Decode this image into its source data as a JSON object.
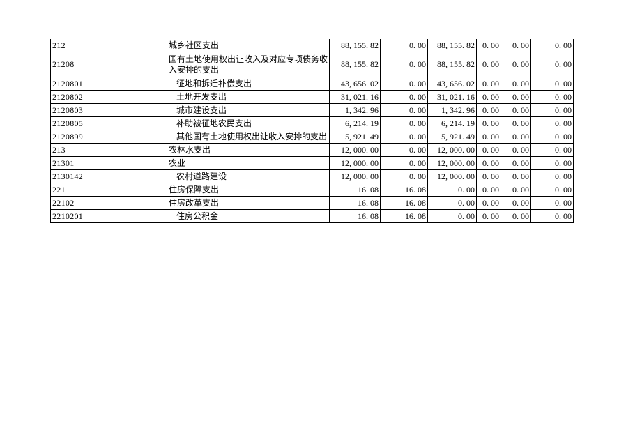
{
  "document": {
    "language": "zh-CN",
    "description_note": "continuation page of a budget expenditure table"
  },
  "colors": {
    "page_background": "#ffffff",
    "text": "#000000",
    "border": "#000000"
  },
  "table": {
    "rows": [
      {
        "code": "212",
        "desc": "城乡社区支出",
        "indent": false,
        "tall": false,
        "values": [
          "88, 155. 82",
          "0. 00",
          "88, 155. 82",
          "0. 00",
          "0. 00",
          "0. 00"
        ]
      },
      {
        "code": "21208",
        "desc": "国有土地使用权出让收入及对应专项债务收入安排的支出",
        "indent": false,
        "tall": true,
        "values": [
          "88, 155. 82",
          "0. 00",
          "88, 155. 82",
          "0. 00",
          "0. 00",
          "0. 00"
        ]
      },
      {
        "code": "2120801",
        "desc": "征地和拆迁补偿支出",
        "indent": true,
        "tall": false,
        "values": [
          "43, 656. 02",
          "0. 00",
          "43, 656. 02",
          "0. 00",
          "0. 00",
          "0. 00"
        ]
      },
      {
        "code": "2120802",
        "desc": "土地开发支出",
        "indent": true,
        "tall": false,
        "values": [
          "31, 021. 16",
          "0. 00",
          "31, 021. 16",
          "0. 00",
          "0. 00",
          "0. 00"
        ]
      },
      {
        "code": "2120803",
        "desc": "城市建设支出",
        "indent": true,
        "tall": false,
        "values": [
          "1, 342. 96",
          "0. 00",
          "1, 342. 96",
          "0. 00",
          "0. 00",
          "0. 00"
        ]
      },
      {
        "code": "2120805",
        "desc": "补助被征地农民支出",
        "indent": true,
        "tall": false,
        "values": [
          "6, 214. 19",
          "0. 00",
          "6, 214. 19",
          "0. 00",
          "0. 00",
          "0. 00"
        ]
      },
      {
        "code": "2120899",
        "desc": "其他国有土地使用权出让收入安排的支出",
        "indent": true,
        "tall": false,
        "values": [
          "5, 921. 49",
          "0. 00",
          "5, 921. 49",
          "0. 00",
          "0. 00",
          "0. 00"
        ]
      },
      {
        "code": "213",
        "desc": "农林水支出",
        "indent": false,
        "tall": false,
        "values": [
          "12, 000. 00",
          "0. 00",
          "12, 000. 00",
          "0. 00",
          "0. 00",
          "0. 00"
        ]
      },
      {
        "code": "21301",
        "desc": "农业",
        "indent": false,
        "tall": false,
        "values": [
          "12, 000. 00",
          "0. 00",
          "12, 000. 00",
          "0. 00",
          "0. 00",
          "0. 00"
        ]
      },
      {
        "code": "2130142",
        "desc": "农村道路建设",
        "indent": true,
        "tall": false,
        "values": [
          "12, 000. 00",
          "0. 00",
          "12, 000. 00",
          "0. 00",
          "0. 00",
          "0. 00"
        ]
      },
      {
        "code": "221",
        "desc": "住房保障支出",
        "indent": false,
        "tall": false,
        "values": [
          "16. 08",
          "16. 08",
          "0. 00",
          "0. 00",
          "0. 00",
          "0. 00"
        ]
      },
      {
        "code": "22102",
        "desc": "住房改革支出",
        "indent": false,
        "tall": false,
        "values": [
          "16. 08",
          "16. 08",
          "0. 00",
          "0. 00",
          "0. 00",
          "0. 00"
        ]
      },
      {
        "code": "2210201",
        "desc": "住房公积金",
        "indent": true,
        "tall": false,
        "values": [
          "16. 08",
          "16. 08",
          "0. 00",
          "0. 00",
          "0. 00",
          "0. 00"
        ]
      }
    ]
  }
}
